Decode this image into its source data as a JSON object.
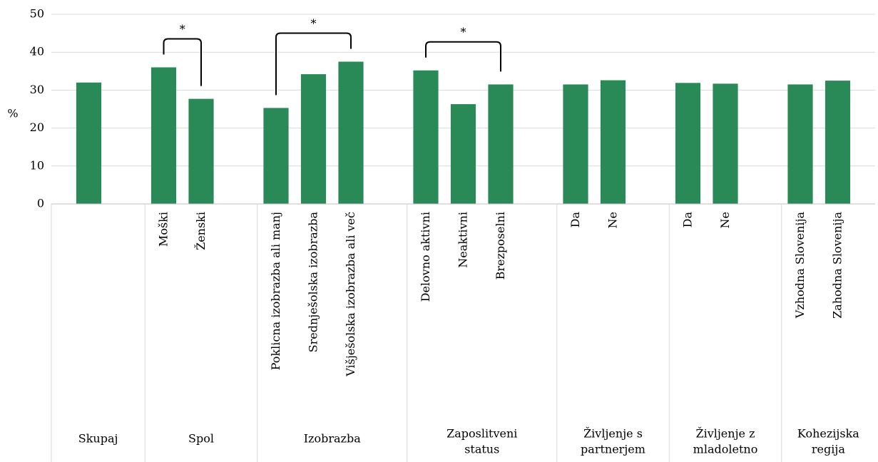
{
  "chart_data": {
    "type": "bar",
    "ylabel": "%",
    "ylim": [
      0,
      50
    ],
    "yticks": [
      0,
      10,
      20,
      30,
      40,
      50
    ],
    "grid": true,
    "bar_color": "#2a8a57",
    "groups": [
      {
        "label": [
          "Skupaj"
        ],
        "bars": [
          {
            "category": "",
            "value": 32
          }
        ]
      },
      {
        "label": [
          "Spol"
        ],
        "bars": [
          {
            "category": "Moški",
            "value": 36
          },
          {
            "category": "Ženski",
            "value": 27.7
          }
        ]
      },
      {
        "label": [
          "Izobrazba"
        ],
        "bars": [
          {
            "category": "Poklicna izobrazba ali manj",
            "value": 25.3
          },
          {
            "category": "Srednješolska izobrazba",
            "value": 34.2
          },
          {
            "category": "Višješolska izobrazba ali več",
            "value": 37.5
          }
        ]
      },
      {
        "label": [
          "Zaposlitveni",
          "status"
        ],
        "bars": [
          {
            "category": "Delovno aktivni",
            "value": 35.2
          },
          {
            "category": "Neaktivni",
            "value": 26.3
          },
          {
            "category": "Brezposelni",
            "value": 31.5
          }
        ]
      },
      {
        "label": [
          "Življenje s",
          "partnerjem"
        ],
        "bars": [
          {
            "category": "Da",
            "value": 31.5
          },
          {
            "category": "Ne",
            "value": 32.6
          }
        ]
      },
      {
        "label": [
          "Življenje z",
          "mladoletno"
        ],
        "bars": [
          {
            "category": "Da",
            "value": 31.9
          },
          {
            "category": "Ne",
            "value": 31.7
          }
        ]
      },
      {
        "label": [
          "Kohezijska",
          "regija"
        ],
        "bars": [
          {
            "category": "Vzhodna Slovenija",
            "value": 31.5
          },
          {
            "category": "Zahodna Slovenija",
            "value": 32.5
          }
        ]
      }
    ],
    "significance": [
      {
        "group": 1,
        "label": "*"
      },
      {
        "group": 2,
        "label": "*"
      },
      {
        "group": 3,
        "label": "*"
      }
    ]
  }
}
